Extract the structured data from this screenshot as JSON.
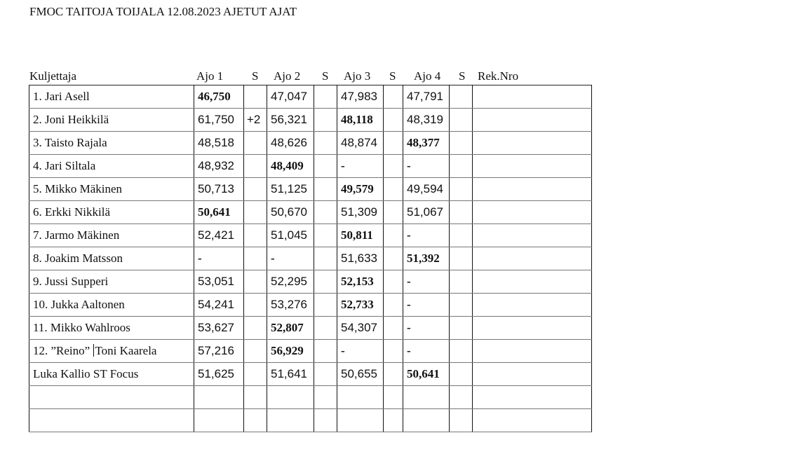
{
  "document": {
    "title": "FMOC TAITOJA TOIJALA 12.08.2023 AJETUT AJAT"
  },
  "table": {
    "headers": [
      "Kuljettaja",
      "Ajo 1",
      "S",
      "Ajo 2",
      "S",
      "Ajo 3",
      "S",
      "Ajo 4",
      "S",
      "Rek.Nro"
    ],
    "rows": [
      {
        "driver": "1. Jari Asell",
        "ajo1": "46,750",
        "s1": "",
        "ajo2": "47,047",
        "s2": "",
        "ajo3": "47,983",
        "s3": "",
        "ajo4": "47,791",
        "s4": "",
        "rek": "",
        "best": "ajo1"
      },
      {
        "driver": "2. Joni Heikkilä",
        "ajo1": "61,750",
        "s1": "+2",
        "ajo2": "56,321",
        "s2": "",
        "ajo3": "48,118",
        "s3": "",
        "ajo4": "48,319",
        "s4": "",
        "rek": "",
        "best": "ajo3"
      },
      {
        "driver": "3. Taisto Rajala",
        "ajo1": "48,518",
        "s1": "",
        "ajo2": "48,626",
        "s2": "",
        "ajo3": "48,874",
        "s3": "",
        "ajo4": "48,377",
        "s4": "",
        "rek": "",
        "best": "ajo4"
      },
      {
        "driver": "4. Jari Siltala",
        "ajo1": "48,932",
        "s1": "",
        "ajo2": "48,409",
        "s2": "",
        "ajo3": "-",
        "s3": "",
        "ajo4": "-",
        "s4": "",
        "rek": "",
        "best": "ajo2"
      },
      {
        "driver": "5. Mikko Mäkinen",
        "ajo1": "50,713",
        "s1": "",
        "ajo2": "51,125",
        "s2": "",
        "ajo3": "49,579",
        "s3": "",
        "ajo4": "49,594",
        "s4": "",
        "rek": "",
        "best": "ajo3"
      },
      {
        "driver": "6. Erkki Nikkilä",
        "ajo1": "50,641",
        "s1": "",
        "ajo2": "50,670",
        "s2": "",
        "ajo3": "51,309",
        "s3": "",
        "ajo4": "51,067",
        "s4": "",
        "rek": "",
        "best": "ajo1"
      },
      {
        "driver": "7. Jarmo Mäkinen",
        "ajo1": "52,421",
        "s1": "",
        "ajo2": "51,045",
        "s2": "",
        "ajo3": "50,811",
        "s3": "",
        "ajo4": "-",
        "s4": "",
        "rek": "",
        "best": "ajo3"
      },
      {
        "driver": "8. Joakim Matsson",
        "ajo1": "-",
        "s1": "",
        "ajo2": "-",
        "s2": "",
        "ajo3": "51,633",
        "s3": "",
        "ajo4": "51,392",
        "s4": "",
        "rek": "",
        "best": "ajo4"
      },
      {
        "driver": "9. Jussi Supperi",
        "ajo1": "53,051",
        "s1": "",
        "ajo2": "52,295",
        "s2": "",
        "ajo3": "52,153",
        "s3": "",
        "ajo4": "-",
        "s4": "",
        "rek": "",
        "best": "ajo3"
      },
      {
        "driver": "10. Jukka Aaltonen",
        "ajo1": "54,241",
        "s1": "",
        "ajo2": "53,276",
        "s2": "",
        "ajo3": "52,733",
        "s3": "",
        "ajo4": "-",
        "s4": "",
        "rek": "",
        "best": "ajo3"
      },
      {
        "driver": "11. Mikko Wahlroos",
        "ajo1": "53,627",
        "s1": "",
        "ajo2": "52,807",
        "s2": "",
        "ajo3": "54,307",
        "s3": "",
        "ajo4": "-",
        "s4": "",
        "rek": "",
        "best": "ajo2"
      },
      {
        "driver": "12. ”Reino” Toni Kaarela",
        "ajo1": "57,216",
        "s1": "",
        "ajo2": "56,929",
        "s2": "",
        "ajo3": "-",
        "s3": "",
        "ajo4": "-",
        "s4": "",
        "rek": "",
        "best": "ajo2"
      },
      {
        "driver": "Luka Kallio ST Focus",
        "ajo1": "51,625",
        "s1": "",
        "ajo2": "51,641",
        "s2": "",
        "ajo3": "50,655",
        "s3": "",
        "ajo4": "50,641",
        "s4": "",
        "rek": "",
        "best": "ajo4"
      },
      {
        "driver": "",
        "ajo1": "",
        "s1": "",
        "ajo2": "",
        "s2": "",
        "ajo3": "",
        "s3": "",
        "ajo4": "",
        "s4": "",
        "rek": "",
        "best": ""
      },
      {
        "driver": "",
        "ajo1": "",
        "s1": "",
        "ajo2": "",
        "s2": "",
        "ajo3": "",
        "s3": "",
        "ajo4": "",
        "s4": "",
        "rek": "",
        "best": ""
      }
    ]
  }
}
